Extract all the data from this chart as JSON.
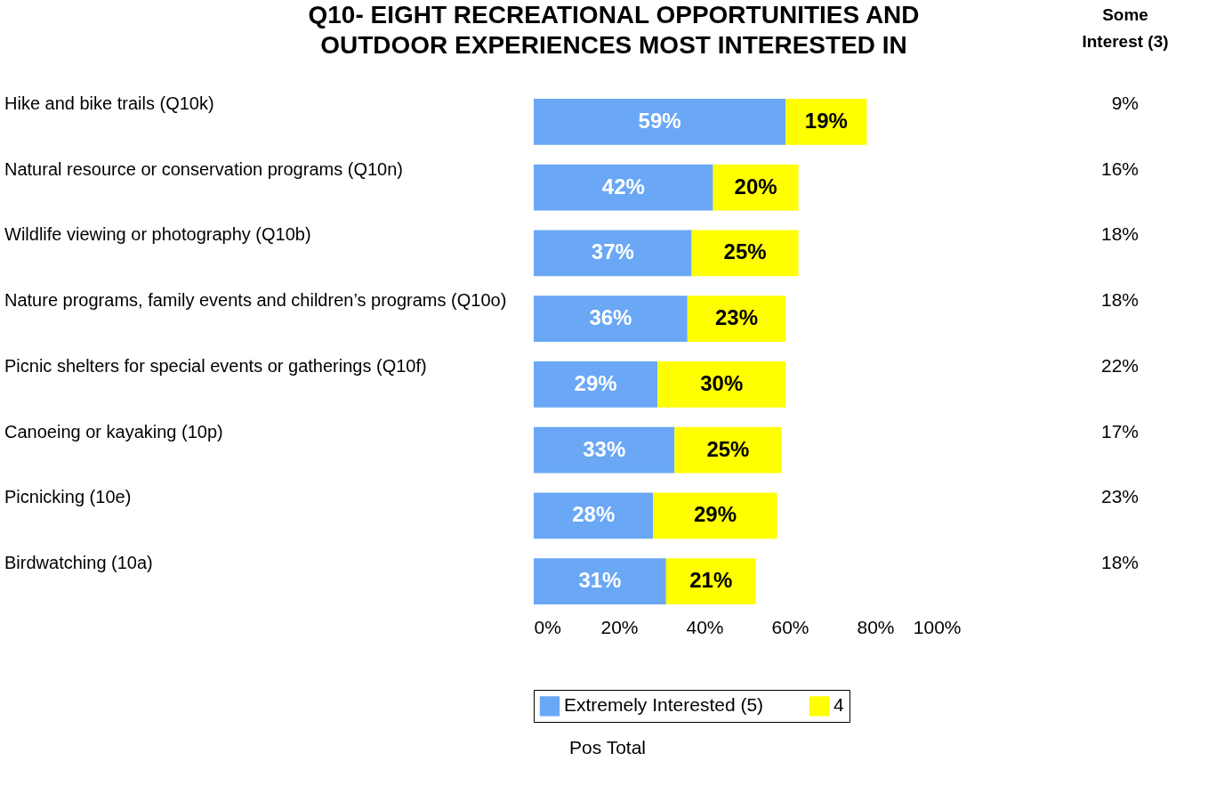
{
  "chart_data": {
    "type": "bar",
    "orientation": "horizontal",
    "stacked": true,
    "title": "Q10- EIGHT RECREATIONAL OPPORTUNITIES AND OUTDOOR EXPERIENCES MOST INTERESTED IN",
    "categories": [
      "Hike and bike trails (Q10k)",
      "Natural resource or conservation programs (Q10n)",
      "Wildlife viewing or photography (Q10b)",
      "Nature programs, family events and children’s programs (Q10o)",
      "Picnic shelters for special events or gatherings (Q10f)",
      "Canoeing or kayaking (10p)",
      "Picnicking (10e)",
      "Birdwatching (10a)"
    ],
    "series": [
      {
        "name": "Extremely Interested (5)",
        "color": "#6aa7f5",
        "values": [
          59,
          42,
          37,
          36,
          29,
          33,
          28,
          31
        ],
        "value_labels": [
          "59%",
          "42%",
          "37%",
          "36%",
          "29%",
          "33%",
          "28%",
          "31%"
        ]
      },
      {
        "name": "4",
        "color": "#ffff00",
        "values": [
          19,
          20,
          25,
          23,
          30,
          25,
          29,
          21
        ],
        "value_labels": [
          "19%",
          "20%",
          "25%",
          "23%",
          "30%",
          "25%",
          "29%",
          "21%"
        ]
      }
    ],
    "xlim": [
      0,
      100
    ],
    "xticks": [
      {
        "value": 0,
        "label": "0%"
      },
      {
        "value": 20,
        "label": "20%"
      },
      {
        "value": 40,
        "label": "40%"
      },
      {
        "value": 60,
        "label": "60%"
      },
      {
        "value": 80,
        "label": "80%"
      },
      {
        "value": 100,
        "label": "100%"
      }
    ],
    "grid": false,
    "legend": "bottom",
    "annotations": [
      "Some Interest (3)",
      "9%",
      "16%",
      "18%",
      "18%",
      "22%",
      "17%",
      "23%",
      "18%",
      "Pos Total"
    ]
  }
}
